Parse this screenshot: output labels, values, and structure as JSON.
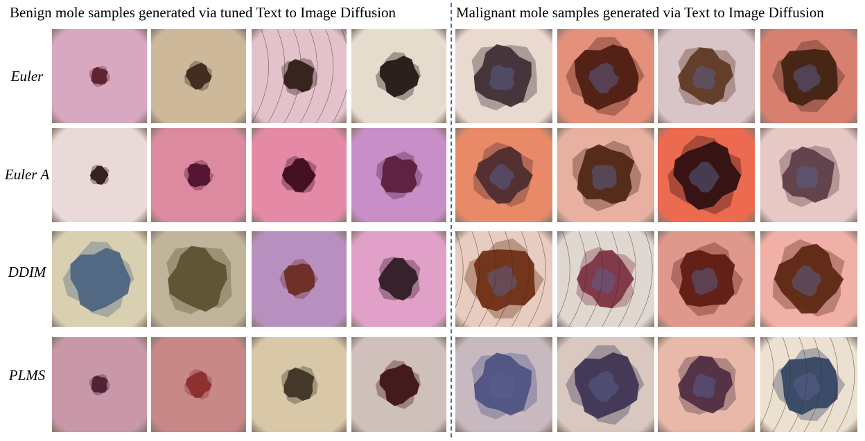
{
  "headers": {
    "benign": "Benign mole samples generated via tuned Text to Image Diffusion",
    "malignant": "Malignant mole samples generated via Text to Image Diffusion"
  },
  "samplers": [
    "Euler",
    "Euler A",
    "DDIM",
    "PLMS"
  ],
  "image_icon": "dermoscopy-image",
  "tiles": [
    {
      "group": "benign",
      "row": 0,
      "col": 0,
      "skin": "#d8a8c0",
      "lesion": "#5a1a2a",
      "hair": false
    },
    {
      "group": "benign",
      "row": 0,
      "col": 1,
      "skin": "#cdb89a",
      "lesion": "#3a2418",
      "hair": false
    },
    {
      "group": "benign",
      "row": 0,
      "col": 2,
      "skin": "#e3c2cc",
      "lesion": "#2a1a12",
      "hair": true
    },
    {
      "group": "benign",
      "row": 0,
      "col": 3,
      "skin": "#e6dccd",
      "lesion": "#1e1410",
      "hair": false
    },
    {
      "group": "malignant",
      "row": 0,
      "col": 0,
      "skin": "#e9d9cf",
      "lesion": "#3b2a30",
      "hair": false
    },
    {
      "group": "malignant",
      "row": 0,
      "col": 1,
      "skin": "#e4907a",
      "lesion": "#4a1a10",
      "hair": false
    },
    {
      "group": "malignant",
      "row": 0,
      "col": 2,
      "skin": "#d9c4c8",
      "lesion": "#5a3520",
      "hair": false
    },
    {
      "group": "malignant",
      "row": 0,
      "col": 3,
      "skin": "#d88070",
      "lesion": "#3e2010",
      "hair": false
    },
    {
      "group": "benign",
      "row": 1,
      "col": 0,
      "skin": "#e9d9d8",
      "lesion": "#2a1414",
      "hair": false
    },
    {
      "group": "benign",
      "row": 1,
      "col": 1,
      "skin": "#dc8aa0",
      "lesion": "#4a0e2a",
      "hair": false
    },
    {
      "group": "benign",
      "row": 1,
      "col": 2,
      "skin": "#e48aa6",
      "lesion": "#3a0818",
      "hair": false
    },
    {
      "group": "benign",
      "row": 1,
      "col": 3,
      "skin": "#c78ec8",
      "lesion": "#5a1a3a",
      "hair": false
    },
    {
      "group": "malignant",
      "row": 1,
      "col": 0,
      "skin": "#e88a68",
      "lesion": "#4a2a30",
      "hair": false
    },
    {
      "group": "malignant",
      "row": 1,
      "col": 1,
      "skin": "#e8b0a0",
      "lesion": "#4a2410",
      "hair": false
    },
    {
      "group": "malignant",
      "row": 1,
      "col": 2,
      "skin": "#ec6a50",
      "lesion": "#2a0e10",
      "hair": false
    },
    {
      "group": "malignant",
      "row": 1,
      "col": 3,
      "skin": "#e6c8c4",
      "lesion": "#5a3a44",
      "hair": false
    },
    {
      "group": "benign",
      "row": 2,
      "col": 0,
      "skin": "#d8d0b0",
      "lesion": "#4a6080",
      "hair": false
    },
    {
      "group": "benign",
      "row": 2,
      "col": 1,
      "skin": "#c0b49a",
      "lesion": "#5a5030",
      "hair": false
    },
    {
      "group": "benign",
      "row": 2,
      "col": 2,
      "skin": "#b890c0",
      "lesion": "#6a2a20",
      "hair": false
    },
    {
      "group": "benign",
      "row": 2,
      "col": 3,
      "skin": "#e0a0c8",
      "lesion": "#2a1a20",
      "hair": false
    },
    {
      "group": "malignant",
      "row": 2,
      "col": 0,
      "skin": "#e8ccc0",
      "lesion": "#6a2a10",
      "hair": true
    },
    {
      "group": "malignant",
      "row": 2,
      "col": 1,
      "skin": "#e0d8d0",
      "lesion": "#7a3040",
      "hair": true
    },
    {
      "group": "malignant",
      "row": 2,
      "col": 2,
      "skin": "#e0988c",
      "lesion": "#5a1810",
      "hair": false
    },
    {
      "group": "malignant",
      "row": 2,
      "col": 3,
      "skin": "#f0b0a8",
      "lesion": "#5a2410",
      "hair": false
    },
    {
      "group": "benign",
      "row": 3,
      "col": 0,
      "skin": "#c898a8",
      "lesion": "#4a1a30",
      "hair": false
    },
    {
      "group": "benign",
      "row": 3,
      "col": 1,
      "skin": "#c88888",
      "lesion": "#8a2a2a",
      "hair": false
    },
    {
      "group": "benign",
      "row": 3,
      "col": 2,
      "skin": "#d8c8a8",
      "lesion": "#3a3020",
      "hair": false
    },
    {
      "group": "benign",
      "row": 3,
      "col": 3,
      "skin": "#d0c0bc",
      "lesion": "#3a1010",
      "hair": false
    },
    {
      "group": "malignant",
      "row": 3,
      "col": 0,
      "skin": "#c8b8c0",
      "lesion": "#4a5080",
      "hair": false
    },
    {
      "group": "malignant",
      "row": 3,
      "col": 1,
      "skin": "#d8c8c0",
      "lesion": "#3a3050",
      "hair": false
    },
    {
      "group": "malignant",
      "row": 3,
      "col": 2,
      "skin": "#e8b8a8",
      "lesion": "#4a2a40",
      "hair": false
    },
    {
      "group": "malignant",
      "row": 3,
      "col": 3,
      "skin": "#ece0d0",
      "lesion": "#304060",
      "hair": true
    }
  ]
}
